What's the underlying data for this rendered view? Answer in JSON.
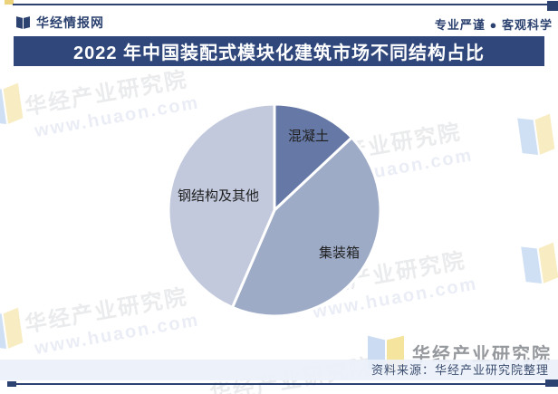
{
  "header": {
    "brand": "华经情报网",
    "tagline": "专业严谨 ● 客观科学"
  },
  "banner": {
    "title": "2022 年中国装配式模块化建筑市场不同结构占比"
  },
  "chart_data": {
    "type": "pie",
    "title": "2022 年中国装配式模块化建筑市场不同结构占比",
    "unit": "%",
    "start_angle_deg": 0,
    "direction": "clockwise",
    "legend": "none",
    "slices": [
      {
        "label": "混凝土",
        "value": 13,
        "color": "#6679A6"
      },
      {
        "label": "集装箱",
        "value": 43.5,
        "color": "#9EABC7"
      },
      {
        "label": "钢结构及其他",
        "value": 43.5,
        "color": "#C2C9DD"
      }
    ]
  },
  "watermark": {
    "cn": "华经产业研究院",
    "url": "www.huaon.com"
  },
  "footer": {
    "logo_text": "华经产业研究院",
    "source_note": "资料来源：华经产业研究院整理"
  },
  "colors": {
    "navy": "#2C4270",
    "banner_bg": "#30477B",
    "accent_yellow": "#EDD27C",
    "slice_dark": "#6679A6",
    "slice_mid": "#9EABC7",
    "slice_light": "#C2C9DD"
  }
}
